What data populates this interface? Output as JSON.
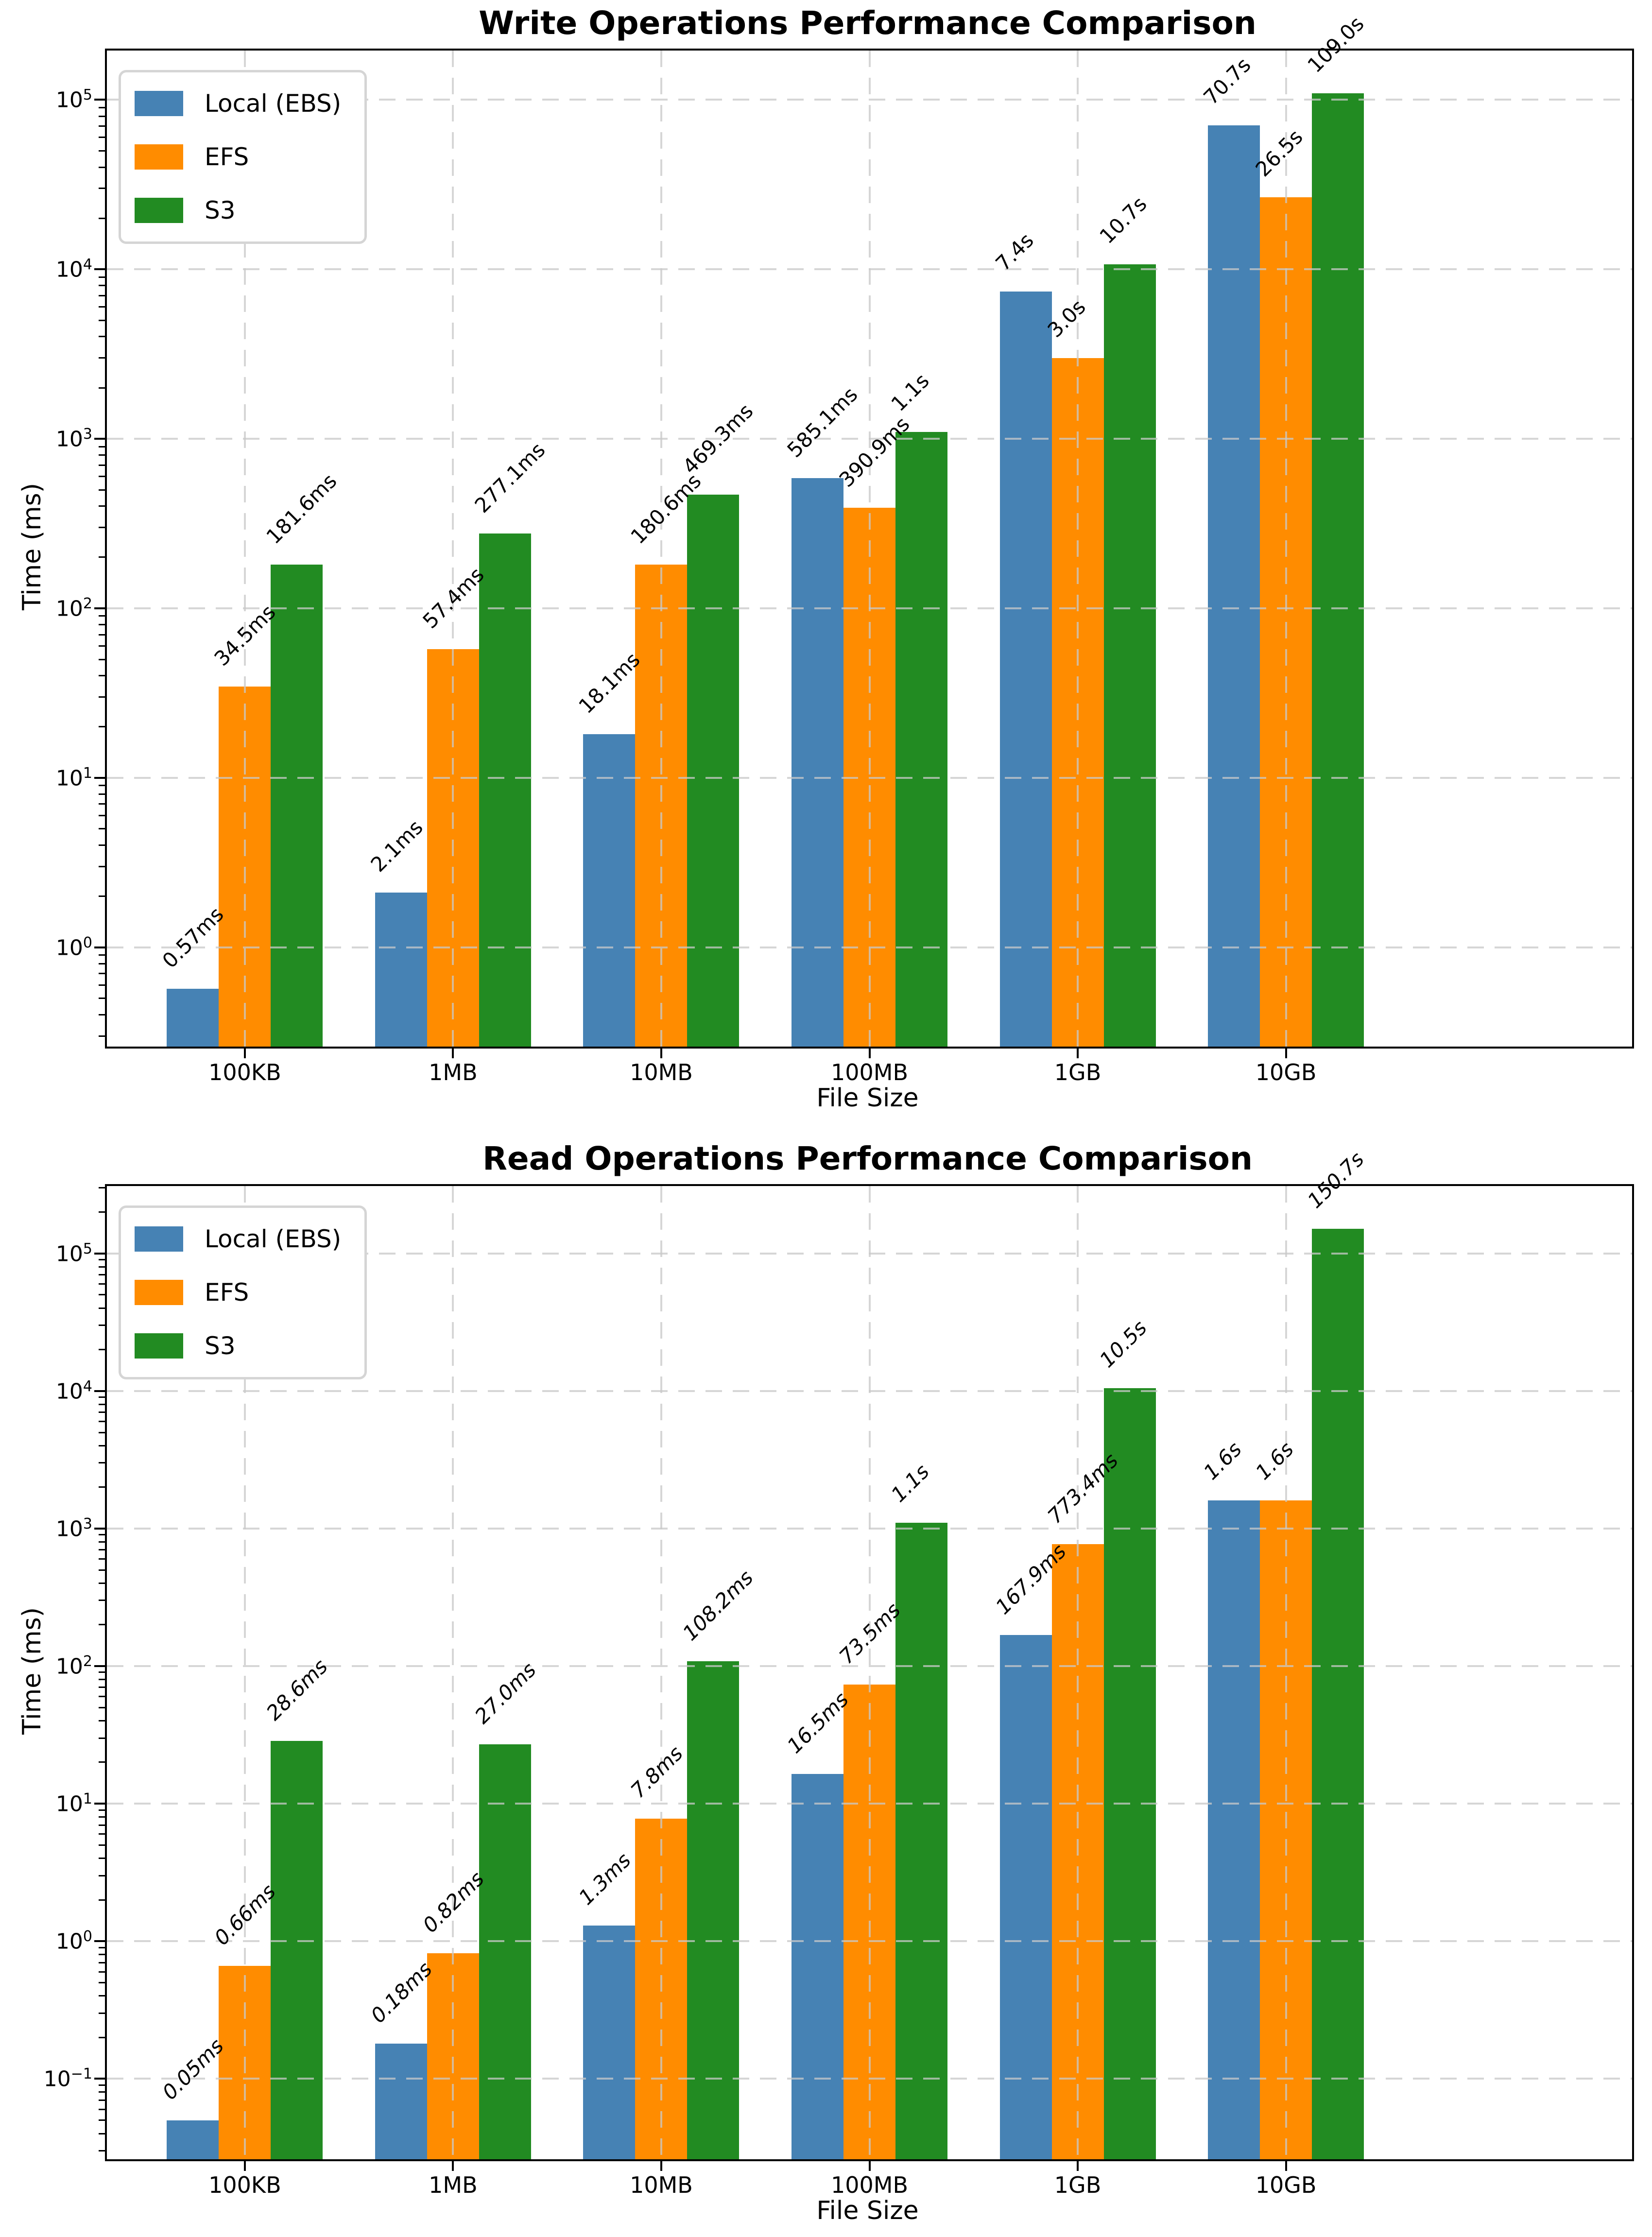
{
  "chart_data": [
    {
      "type": "bar",
      "title": "Write Operations Performance Comparison",
      "xlabel": "File Size",
      "ylabel": "Time (ms)",
      "yscale": "log",
      "grid": true,
      "legend_position": "upper left",
      "categories": [
        "100KB",
        "1MB",
        "10MB",
        "100MB",
        "1GB",
        "10GB"
      ],
      "series": [
        {
          "name": "Local (EBS)",
          "color": "#4682B4",
          "values_ms": [
            0.57,
            2.1,
            18.1,
            585.1,
            7400,
            70700
          ],
          "labels": [
            "0.57ms",
            "2.1ms",
            "18.1ms",
            "585.1ms",
            "7.4s",
            "70.7s"
          ]
        },
        {
          "name": "EFS",
          "color": "#FF8C00",
          "values_ms": [
            34.5,
            57.4,
            180.6,
            390.9,
            3000,
            26500
          ],
          "labels": [
            "34.5ms",
            "57.4ms",
            "180.6ms",
            "390.9ms",
            "3.0s",
            "26.5s"
          ]
        },
        {
          "name": "S3",
          "color": "#228B22",
          "values_ms": [
            181.6,
            277.1,
            469.3,
            1100,
            10700,
            109000
          ],
          "labels": [
            "181.6ms",
            "277.1ms",
            "469.3ms",
            "1.1s",
            "10.7s",
            "109.0s"
          ]
        }
      ],
      "ylim": [
        0.26,
        195000
      ],
      "ytick_exponents": [
        0,
        1,
        2,
        3,
        4,
        5
      ],
      "label_fontstyle": "normal"
    },
    {
      "type": "bar",
      "title": "Read Operations Performance Comparison",
      "xlabel": "File Size",
      "ylabel": "Time (ms)",
      "yscale": "log",
      "grid": true,
      "legend_position": "upper left",
      "categories": [
        "100KB",
        "1MB",
        "10MB",
        "100MB",
        "1GB",
        "10GB"
      ],
      "series": [
        {
          "name": "Local (EBS)",
          "color": "#4682B4",
          "values_ms": [
            0.05,
            0.18,
            1.3,
            16.5,
            167.9,
            1600
          ],
          "labels": [
            "0.05ms",
            "0.18ms",
            "1.3ms",
            "16.5ms",
            "167.9ms",
            "1.6s"
          ]
        },
        {
          "name": "EFS",
          "color": "#FF8C00",
          "values_ms": [
            0.66,
            0.82,
            7.8,
            73.5,
            773.4,
            1600
          ],
          "labels": [
            "0.66ms",
            "0.82ms",
            "7.8ms",
            "73.5ms",
            "773.4ms",
            "1.6s"
          ]
        },
        {
          "name": "S3",
          "color": "#228B22",
          "values_ms": [
            28.6,
            27.0,
            108.2,
            1100,
            10500,
            150700
          ],
          "labels": [
            "28.6ms",
            "27.0ms",
            "108.2ms",
            "1.1s",
            "10.5s",
            "150.7s"
          ]
        }
      ],
      "ylim": [
        0.026,
        309000
      ],
      "ytick_exponents": [
        -1,
        0,
        1,
        2,
        3,
        4,
        5
      ],
      "label_fontstyle": "italic"
    }
  ]
}
